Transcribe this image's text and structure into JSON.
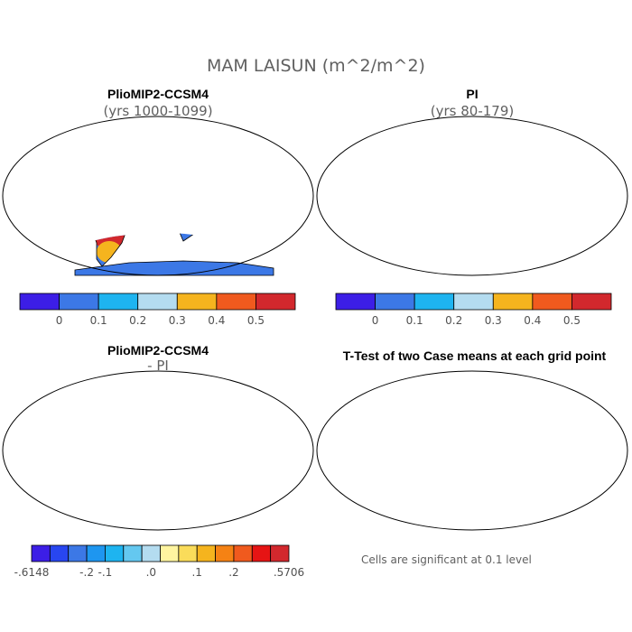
{
  "title": "MAM LAISUN (m^2/m^2)",
  "panels": [
    {
      "title": "PlioMIP2-CCSM4",
      "subtitle": "(yrs 1000-1099)"
    },
    {
      "title": "PI",
      "subtitle": "(yrs 80-179)"
    },
    {
      "title": "PlioMIP2-CCSM4",
      "subtitle": "- PI"
    },
    {
      "title": "T-Test of two Case means at each grid point",
      "subtitle": ""
    }
  ],
  "colorbar_top": {
    "colors": [
      "#3c1ee6",
      "#3c78e6",
      "#1eb4f0",
      "#b4dcf0",
      "#f5b41e",
      "#f05a1e",
      "#d2282d"
    ],
    "labels": [
      "0",
      "0.1",
      "0.2",
      "0.3",
      "0.4",
      "0.5"
    ]
  },
  "colorbar_diff": {
    "colors": [
      "#3c1ee6",
      "#2846f0",
      "#3c78e6",
      "#1e96f0",
      "#1eb4f0",
      "#64c8f0",
      "#b4dcf0",
      "#fff5a0",
      "#fadc5a",
      "#f5b41e",
      "#f58214",
      "#f05a1e",
      "#e61414",
      "#d2282d"
    ],
    "labels": [
      "-.6148",
      "-.2",
      "-.1",
      ".0",
      ".1",
      ".2",
      ".5706"
    ]
  },
  "significance_note": "Cells are significant at 0.1 level",
  "map_colors": {
    "ocean": "#ffffff",
    "coast": "#000000",
    "sig": "#ff0000"
  }
}
